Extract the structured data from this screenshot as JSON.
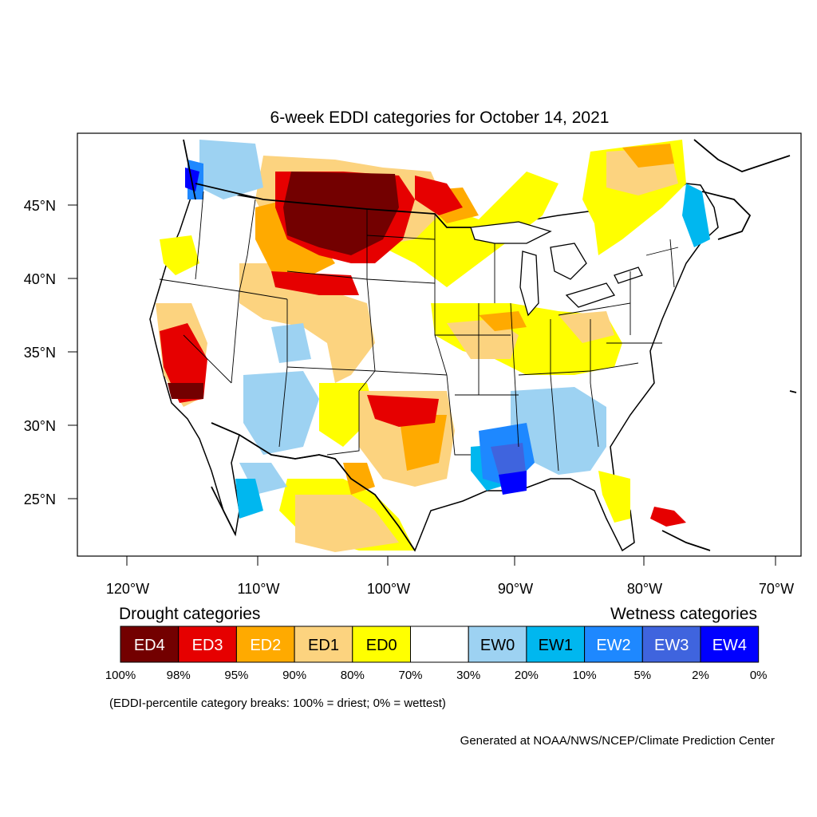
{
  "title": "6-week EDDI categories for October 14, 2021",
  "map": {
    "lat_labels": [
      "45°N",
      "40°N",
      "35°N",
      "30°N",
      "25°N"
    ],
    "lon_labels": [
      "120°W",
      "110°W",
      "100°W",
      "90°W",
      "80°W",
      "70°W"
    ],
    "lat_values": [
      45,
      40,
      35,
      30,
      25
    ],
    "lon_values": [
      -120,
      -110,
      -100,
      -90,
      -80,
      -70
    ]
  },
  "legend": {
    "drought_heading": "Drought categories",
    "wetness_heading": "Wetness categories",
    "categories": [
      {
        "label": "ED4",
        "color": "#730000",
        "text_color": "#ffffff"
      },
      {
        "label": "ED3",
        "color": "#e60000",
        "text_color": "#ffffff"
      },
      {
        "label": "ED2",
        "color": "#ffaa00",
        "text_color": "#ffffff"
      },
      {
        "label": "ED1",
        "color": "#fcd37f",
        "text_color": "#000000"
      },
      {
        "label": "ED0",
        "color": "#ffff00",
        "text_color": "#000000"
      },
      {
        "label": "",
        "color": "#ffffff",
        "text_color": "#000000"
      },
      {
        "label": "EW0",
        "color": "#9dd2f2",
        "text_color": "#000000"
      },
      {
        "label": "EW1",
        "color": "#00b7ef",
        "text_color": "#000000"
      },
      {
        "label": "EW2",
        "color": "#1e88ff",
        "text_color": "#ffffff"
      },
      {
        "label": "EW3",
        "color": "#3f64de",
        "text_color": "#ffffff"
      },
      {
        "label": "EW4",
        "color": "#0000ff",
        "text_color": "#ffffff"
      }
    ],
    "breaks": [
      "100%",
      "98%",
      "95%",
      "90%",
      "80%",
      "70%",
      "30%",
      "20%",
      "10%",
      "5%",
      "2%",
      "0%"
    ],
    "note": "(EDDI-percentile category breaks: 100% = driest; 0% = wettest)"
  },
  "credit": "Generated at NOAA/NWS/NCEP/Climate Prediction Center"
}
